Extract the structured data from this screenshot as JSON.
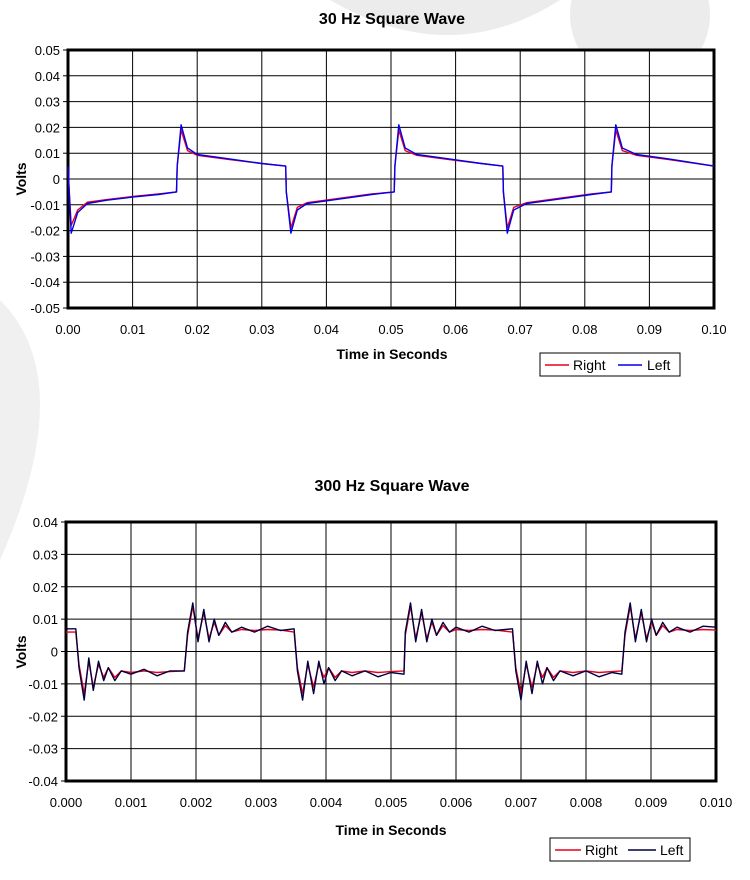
{
  "colors": {
    "right": "#e8001c",
    "left_top": "#0000ee",
    "left_bottom": "#000040",
    "grid": "#000000",
    "watermark": "#ececec"
  },
  "chart_data": [
    {
      "type": "line",
      "title": "30 Hz Square Wave",
      "xlabel": "Time in Seconds",
      "ylabel": "Volts",
      "xlim": [
        0,
        0.1
      ],
      "ylim": [
        -0.05,
        0.05
      ],
      "x_ticks": [
        "0.00",
        "0.01",
        "0.02",
        "0.03",
        "0.04",
        "0.05",
        "0.06",
        "0.07",
        "0.08",
        "0.09",
        "0.10"
      ],
      "y_ticks": [
        "0.05",
        "0.04",
        "0.03",
        "0.02",
        "0.01",
        "0",
        "-0.01",
        "-0.02",
        "-0.03",
        "-0.04",
        "-0.05"
      ],
      "grid": true,
      "legend_position": "bottom-right",
      "series": [
        {
          "name": "Right",
          "x": [
            0.0,
            0.0005,
            0.0015,
            0.003,
            0.006,
            0.01,
            0.014,
            0.0168,
            0.0169,
            0.0175,
            0.0185,
            0.02,
            0.025,
            0.03,
            0.0337,
            0.0338,
            0.0345,
            0.0355,
            0.037,
            0.042,
            0.047,
            0.0505,
            0.0506,
            0.0512,
            0.0522,
            0.054,
            0.059,
            0.064,
            0.0673,
            0.0674,
            0.068,
            0.069,
            0.071,
            0.076,
            0.081,
            0.0841,
            0.0842,
            0.0848,
            0.0858,
            0.088,
            0.093,
            0.1
          ],
          "y": [
            0.004,
            -0.018,
            -0.012,
            -0.009,
            -0.008,
            -0.0068,
            -0.0058,
            -0.005,
            0.005,
            0.019,
            0.011,
            0.0092,
            0.0075,
            0.006,
            0.005,
            -0.005,
            -0.019,
            -0.011,
            -0.0092,
            -0.0075,
            -0.0058,
            -0.005,
            0.005,
            0.019,
            0.011,
            0.0092,
            0.0075,
            0.006,
            0.005,
            -0.005,
            -0.019,
            -0.011,
            -0.0092,
            -0.0075,
            -0.0058,
            -0.005,
            0.005,
            0.019,
            0.011,
            0.0092,
            0.0075,
            0.005
          ]
        },
        {
          "name": "Left",
          "x": [
            0.0,
            0.0005,
            0.0015,
            0.003,
            0.006,
            0.01,
            0.014,
            0.0168,
            0.0169,
            0.0175,
            0.0185,
            0.02,
            0.025,
            0.03,
            0.0337,
            0.0338,
            0.0345,
            0.0355,
            0.037,
            0.042,
            0.047,
            0.0505,
            0.0506,
            0.0512,
            0.0522,
            0.054,
            0.059,
            0.064,
            0.0673,
            0.0674,
            0.068,
            0.069,
            0.071,
            0.076,
            0.081,
            0.0841,
            0.0842,
            0.0848,
            0.0858,
            0.088,
            0.093,
            0.1
          ],
          "y": [
            0.005,
            -0.021,
            -0.013,
            -0.0095,
            -0.0082,
            -0.007,
            -0.006,
            -0.005,
            0.005,
            0.021,
            0.012,
            0.0095,
            0.0078,
            0.006,
            0.005,
            -0.005,
            -0.021,
            -0.012,
            -0.0095,
            -0.0078,
            -0.006,
            -0.005,
            0.005,
            0.021,
            0.012,
            0.0095,
            0.0078,
            0.006,
            0.005,
            -0.005,
            -0.021,
            -0.012,
            -0.0095,
            -0.0078,
            -0.006,
            -0.005,
            0.005,
            0.021,
            0.012,
            0.0095,
            0.0078,
            0.005
          ]
        }
      ]
    },
    {
      "type": "line",
      "title": "300 Hz Square Wave",
      "xlabel": "Time in Seconds",
      "ylabel": "Volts",
      "xlim": [
        0,
        0.01
      ],
      "ylim": [
        -0.04,
        0.04
      ],
      "x_ticks": [
        "0.000",
        "0.001",
        "0.002",
        "0.003",
        "0.004",
        "0.005",
        "0.006",
        "0.007",
        "0.008",
        "0.009",
        "0.010"
      ],
      "y_ticks": [
        "0.04",
        "0.03",
        "0.02",
        "0.01",
        "0",
        "-0.01",
        "-0.02",
        "-0.03",
        "-0.04"
      ],
      "grid": true,
      "legend_position": "bottom-right",
      "series": [
        {
          "name": "Right",
          "x": [
            0.0,
            0.00015,
            0.0002,
            0.00028,
            0.00035,
            0.00042,
            0.0005,
            0.00058,
            0.00065,
            0.00075,
            0.00085,
            0.001,
            0.0012,
            0.0014,
            0.0016,
            0.00182,
            0.00187,
            0.00195,
            0.00203,
            0.00212,
            0.0022,
            0.00228,
            0.00235,
            0.00245,
            0.00255,
            0.0027,
            0.0029,
            0.0031,
            0.0033,
            0.00351,
            0.00356,
            0.00364,
            0.00372,
            0.00381,
            0.00389,
            0.00397,
            0.00404,
            0.00414,
            0.00424,
            0.0044,
            0.0046,
            0.0048,
            0.005,
            0.0052,
            0.00522,
            0.0053,
            0.00538,
            0.00547,
            0.00555,
            0.00563,
            0.0057,
            0.0058,
            0.0059,
            0.006,
            0.0062,
            0.0064,
            0.0066,
            0.00687,
            0.00692,
            0.007,
            0.00708,
            0.00717,
            0.00725,
            0.00733,
            0.0074,
            0.0075,
            0.0076,
            0.0078,
            0.008,
            0.0082,
            0.0084,
            0.00855,
            0.0086,
            0.00868,
            0.00876,
            0.00885,
            0.00893,
            0.00901,
            0.00908,
            0.00918,
            0.00928,
            0.0094,
            0.0096,
            0.0098,
            0.01
          ],
          "y": [
            0.006,
            0.006,
            -0.004,
            -0.013,
            -0.003,
            -0.011,
            -0.004,
            -0.008,
            -0.005,
            -0.008,
            -0.006,
            -0.0065,
            -0.006,
            -0.0065,
            -0.0062,
            -0.006,
            0.005,
            0.014,
            0.004,
            0.012,
            0.004,
            0.009,
            0.005,
            0.008,
            0.006,
            0.0068,
            0.0065,
            0.0068,
            0.0066,
            0.006,
            -0.005,
            -0.013,
            -0.004,
            -0.011,
            -0.004,
            -0.008,
            -0.005,
            -0.008,
            -0.006,
            -0.0065,
            -0.006,
            -0.0065,
            -0.0062,
            -0.006,
            0.005,
            0.014,
            0.004,
            0.012,
            0.004,
            0.009,
            0.005,
            0.008,
            0.006,
            0.0068,
            0.0065,
            0.0068,
            0.0066,
            0.006,
            -0.005,
            -0.013,
            -0.004,
            -0.011,
            -0.004,
            -0.008,
            -0.005,
            -0.008,
            -0.006,
            -0.0065,
            -0.006,
            -0.0065,
            -0.0062,
            -0.006,
            0.005,
            0.014,
            0.004,
            0.012,
            0.004,
            0.009,
            0.005,
            0.008,
            0.006,
            0.0068,
            0.0065,
            0.0068,
            0.0066
          ]
        },
        {
          "name": "Left",
          "x": [
            0.0,
            0.00015,
            0.0002,
            0.00028,
            0.00035,
            0.00042,
            0.0005,
            0.00058,
            0.00065,
            0.00075,
            0.00085,
            0.001,
            0.0012,
            0.0014,
            0.0016,
            0.00182,
            0.00187,
            0.00195,
            0.00203,
            0.00212,
            0.0022,
            0.00228,
            0.00235,
            0.00245,
            0.00255,
            0.0027,
            0.0029,
            0.0031,
            0.0033,
            0.00351,
            0.00356,
            0.00364,
            0.00372,
            0.00381,
            0.00389,
            0.00397,
            0.00404,
            0.00414,
            0.00424,
            0.0044,
            0.0046,
            0.0048,
            0.005,
            0.0052,
            0.00522,
            0.0053,
            0.00538,
            0.00547,
            0.00555,
            0.00563,
            0.0057,
            0.0058,
            0.0059,
            0.006,
            0.0062,
            0.0064,
            0.0066,
            0.00687,
            0.00692,
            0.007,
            0.00708,
            0.00717,
            0.00725,
            0.00733,
            0.0074,
            0.0075,
            0.0076,
            0.0078,
            0.008,
            0.0082,
            0.0084,
            0.00855,
            0.0086,
            0.00868,
            0.00876,
            0.00885,
            0.00893,
            0.00901,
            0.00908,
            0.00918,
            0.00928,
            0.0094,
            0.0096,
            0.0098,
            0.01
          ],
          "y": [
            0.007,
            0.007,
            -0.005,
            -0.015,
            -0.002,
            -0.012,
            -0.003,
            -0.009,
            -0.005,
            -0.009,
            -0.006,
            -0.007,
            -0.0055,
            -0.0075,
            -0.006,
            -0.006,
            0.006,
            0.015,
            0.003,
            0.013,
            0.003,
            0.01,
            0.005,
            0.009,
            0.006,
            0.0075,
            0.006,
            0.0078,
            0.0065,
            0.007,
            -0.006,
            -0.015,
            -0.003,
            -0.013,
            -0.003,
            -0.01,
            -0.005,
            -0.009,
            -0.006,
            -0.0075,
            -0.006,
            -0.0078,
            -0.0065,
            -0.007,
            0.006,
            0.015,
            0.003,
            0.013,
            0.003,
            0.01,
            0.005,
            0.009,
            0.006,
            0.0075,
            0.006,
            0.0078,
            0.0065,
            0.007,
            -0.006,
            -0.015,
            -0.003,
            -0.013,
            -0.003,
            -0.01,
            -0.005,
            -0.009,
            -0.006,
            -0.0075,
            -0.006,
            -0.0078,
            -0.0065,
            -0.007,
            0.006,
            0.015,
            0.003,
            0.013,
            0.003,
            0.01,
            0.005,
            0.009,
            0.006,
            0.0075,
            0.006,
            0.0078,
            0.0075
          ]
        }
      ]
    }
  ]
}
